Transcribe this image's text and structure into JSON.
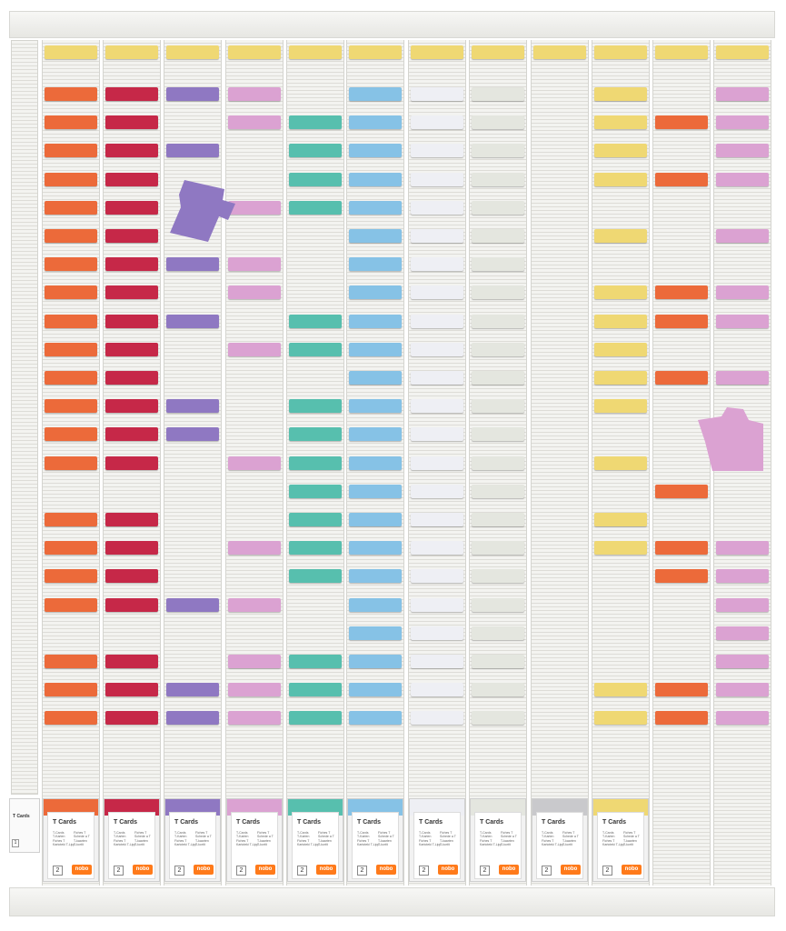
{
  "board": {
    "columns": [
      {
        "name": "col-1",
        "color": "#ec6a3a",
        "rows": [
          0,
          1,
          2,
          3,
          4,
          5,
          6,
          7,
          8,
          9,
          10,
          11,
          12,
          13,
          15,
          16,
          17,
          18,
          20,
          21,
          22
        ]
      },
      {
        "name": "col-2",
        "color": "#c62848",
        "rows": [
          0,
          1,
          2,
          3,
          4,
          5,
          6,
          7,
          8,
          9,
          10,
          11,
          12,
          13,
          15,
          16,
          17,
          18,
          20,
          21,
          22
        ]
      },
      {
        "name": "col-3",
        "color": "#8f78c2",
        "rows": [
          0,
          2,
          6,
          8,
          11,
          12,
          18,
          21,
          22
        ]
      },
      {
        "name": "col-4",
        "color": "#dba2d2",
        "rows": [
          0,
          1,
          4,
          6,
          7,
          9,
          13,
          16,
          18,
          20,
          21,
          22
        ]
      },
      {
        "name": "col-5",
        "color": "#57bfae",
        "rows": [
          1,
          2,
          3,
          4,
          8,
          9,
          11,
          12,
          13,
          14,
          15,
          16,
          17,
          20,
          21,
          22
        ]
      },
      {
        "name": "col-6",
        "color": "#86c2e6",
        "rows": [
          0,
          1,
          2,
          3,
          4,
          5,
          6,
          7,
          8,
          9,
          10,
          11,
          12,
          13,
          14,
          15,
          16,
          17,
          18,
          19,
          20,
          21,
          22
        ]
      },
      {
        "name": "col-7",
        "color": "#eeeff4",
        "rows": [
          0,
          1,
          2,
          3,
          4,
          5,
          6,
          7,
          8,
          9,
          10,
          11,
          12,
          13,
          14,
          15,
          16,
          17,
          18,
          19,
          20,
          21,
          22
        ]
      },
      {
        "name": "col-8",
        "color": "#e4e6df",
        "rows": [
          0,
          1,
          2,
          3,
          4,
          5,
          6,
          7,
          8,
          9,
          10,
          11,
          12,
          13,
          14,
          15,
          16,
          17,
          18,
          19,
          20,
          21,
          22
        ]
      },
      {
        "name": "col-9",
        "color": "#efeeea",
        "rows": []
      },
      {
        "name": "col-10",
        "color": "#efd873",
        "rows": [
          0,
          1,
          2,
          3,
          5,
          7,
          8,
          9,
          10,
          11,
          13,
          15,
          16,
          21,
          22
        ]
      },
      {
        "name": "col-11",
        "color": "#ec6a3a",
        "rows": [
          1,
          3,
          7,
          8,
          10,
          14,
          16,
          17,
          21,
          22
        ]
      },
      {
        "name": "col-12",
        "color": "#dba2d2",
        "rows": [
          0,
          1,
          2,
          3,
          5,
          7,
          8,
          10,
          16,
          17,
          18,
          19,
          20,
          21,
          22
        ]
      }
    ],
    "header_card_color": "#efd873"
  },
  "loose_cards": {
    "purple": "#8f78c2",
    "pink": "#dba2d2"
  },
  "packs": {
    "title": "T Cards",
    "lines_left": [
      "T-Cards",
      "T-Karten",
      "Fiches T",
      "Kartoteki T-Lipp"
    ],
    "lines_right": [
      "Fiches T",
      "Schede a T",
      "T-kaarten",
      "T-kortit"
    ],
    "count": "2",
    "brand": "nobo",
    "colors": [
      "#ec6a3a",
      "#c62848",
      "#8f78c2",
      "#dba2d2",
      "#57bfae",
      "#86c2e6",
      "#eeeff4",
      "#e4e6df",
      "#c9c9cc",
      "#efd873"
    ],
    "small_title": "T Cards",
    "small_count": "1"
  }
}
